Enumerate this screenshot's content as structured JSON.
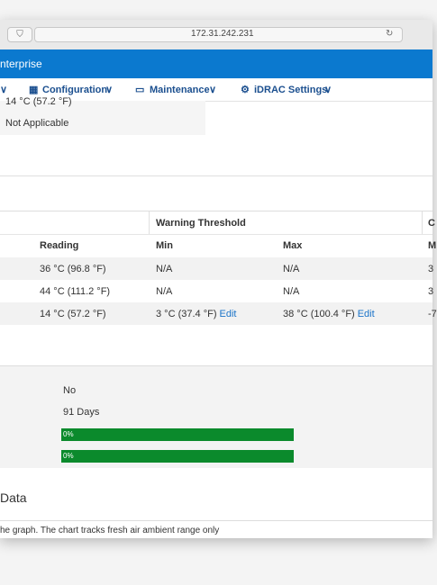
{
  "browser": {
    "url": "172.31.242.231"
  },
  "header": {
    "title": "nterprise"
  },
  "nav": {
    "items": [
      "Configuration",
      "Maintenance",
      "iDRAC Settings"
    ]
  },
  "summary": {
    "rows": [
      "14 °C (57.2 °F)",
      "Not Applicable"
    ]
  },
  "table": {
    "group_headers": [
      "Warning Threshold",
      "C"
    ],
    "columns": [
      "Reading",
      "Min",
      "Max",
      "M"
    ],
    "rows": [
      [
        "36 °C (96.8 °F)",
        "N/A",
        "N/A",
        "3"
      ],
      [
        "44 °C (111.2 °F)",
        "N/A",
        "N/A",
        "3"
      ],
      [
        "14 °C (57.2 °F)",
        {
          "text": "3 °C (37.4 °F)",
          "link": "Edit"
        },
        {
          "text": "38 °C (100.4 °F)",
          "link": "Edit"
        },
        "-7"
      ]
    ]
  },
  "details": {
    "rows": [
      "No",
      "91 Days"
    ],
    "bars": [
      "0%",
      "0%"
    ]
  },
  "section": {
    "title": "Data",
    "note": "he graph. The chart tracks fresh air ambient range only"
  }
}
